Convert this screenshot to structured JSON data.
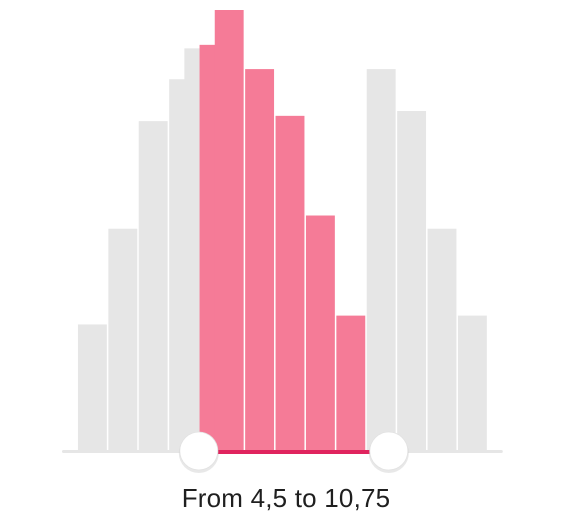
{
  "range_label": "From 4,5 to 10,75",
  "colors": {
    "bar_inactive": "#e6e6e6",
    "bar_active": "#f57b97",
    "track": "#e6e6e6",
    "track_active": "#e0245e",
    "thumb_fill": "#ffffff",
    "thumb_shadow": "#bdbdbd"
  },
  "slider": {
    "min": 0,
    "max": 14.5,
    "from": 4.5,
    "to": 10.75
  },
  "histogram": {
    "bars": [
      {
        "start": 0.5,
        "height": 0.287
      },
      {
        "start": 1.5,
        "height": 0.504
      },
      {
        "start": 2.5,
        "height": 0.748
      },
      {
        "start": 3.5,
        "height": 0.843
      },
      {
        "start": 4.0,
        "height": 0.913
      },
      {
        "start": 4.5,
        "height": 0.921
      },
      {
        "start": 5.0,
        "height": 1.0
      },
      {
        "start": 6.0,
        "height": 0.866
      },
      {
        "start": 7.0,
        "height": 0.76
      },
      {
        "start": 8.0,
        "height": 0.534
      },
      {
        "start": 9.0,
        "height": 0.307
      },
      {
        "start": 10.0,
        "height": 0.866
      },
      {
        "start": 11.0,
        "height": 0.771
      },
      {
        "start": 12.0,
        "height": 0.504
      },
      {
        "start": 13.0,
        "height": 0.307
      }
    ],
    "bar_width": 1
  }
}
